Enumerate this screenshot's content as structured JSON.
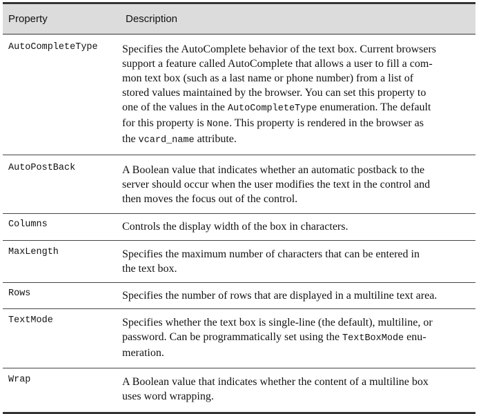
{
  "table": {
    "headers": {
      "property": "Property",
      "description": "Description"
    },
    "rows": [
      {
        "property": "AutoCompleteType",
        "description": [
          "Specifies the AutoComplete behavior of the text box. Current browsers",
          "support a feature called AutoComplete that allows a user to fill a com-",
          "mon text box (such as a last name or phone number) from a list of",
          "stored values maintained by the browser. You can set this property to",
          [
            "one of the values in the ",
            "AutoCompleteType",
            " enumeration. The default"
          ],
          [
            "for this property is ",
            "None",
            ". This property is rendered in the browser as"
          ],
          [
            "the ",
            "vcard_name",
            " attribute."
          ]
        ]
      },
      {
        "property": "AutoPostBack",
        "description": [
          "A Boolean value that indicates whether an automatic postback to the",
          "server should occur when the user modifies the text in the control and",
          "then moves the focus out of the control."
        ]
      },
      {
        "property": "Columns",
        "description": [
          "Controls the display width of the box in characters."
        ]
      },
      {
        "property": "MaxLength",
        "description": [
          "Specifies the maximum number of characters that can be entered in",
          "the text box."
        ]
      },
      {
        "property": "Rows",
        "description": [
          "Specifies the number of rows that are displayed in a multiline text area."
        ]
      },
      {
        "property": "TextMode",
        "description": [
          "Specifies whether the text box is single-line (the default), multiline, or",
          [
            "password. Can be programmatically set using the ",
            "TextBoxMode",
            " enu-"
          ],
          "meration."
        ]
      },
      {
        "property": "Wrap",
        "description": [
          "A Boolean value that indicates whether the content of a multiline box",
          "uses word wrapping."
        ]
      }
    ]
  }
}
